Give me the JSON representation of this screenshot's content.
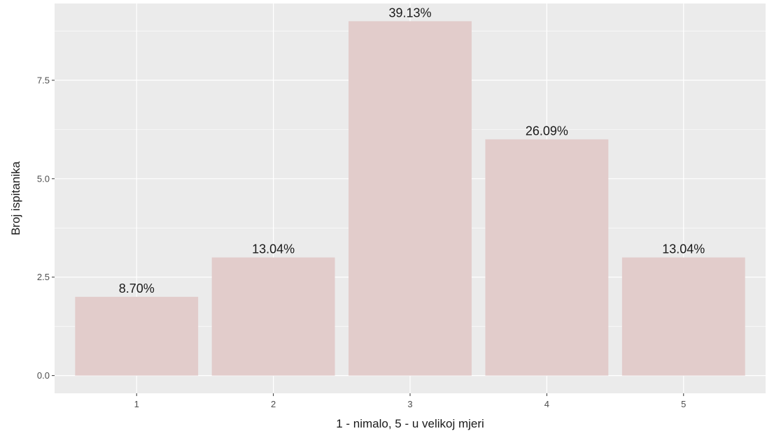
{
  "chart_data": {
    "type": "bar",
    "categories": [
      "1",
      "2",
      "3",
      "4",
      "5"
    ],
    "values": [
      2,
      3,
      9,
      6,
      3
    ],
    "labels": [
      "8.70%",
      "13.04%",
      "39.13%",
      "26.09%",
      "13.04%"
    ],
    "xlabel": "1 - nimalo, 5 - u velikoj mjeri",
    "ylabel": "Broj ispitanika",
    "ylim": [
      -0.45,
      9.45
    ],
    "yticks": [
      0.0,
      2.5,
      5.0,
      7.5
    ],
    "ytick_labels": [
      "0.0",
      "2.5",
      "5.0",
      "7.5"
    ],
    "grid": true,
    "colors": {
      "panel": "#ebebeb",
      "grid": "#ffffff",
      "bar": "#e2cccb",
      "tick": "#333333"
    }
  }
}
